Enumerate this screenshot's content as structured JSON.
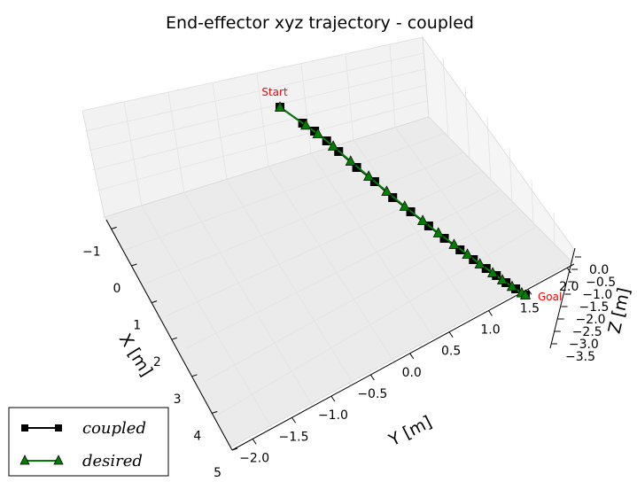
{
  "chart_data": {
    "type": "line3d",
    "title": "End-effector xyz trajectory - coupled",
    "xlabel": "X [m]",
    "ylabel": "Y [m]",
    "zlabel": "Z [m]",
    "x_ticks": [
      "−1",
      "0",
      "1",
      "2",
      "3",
      "4",
      "5"
    ],
    "y_ticks": [
      "−2.0",
      "−1.5",
      "−1.0",
      "−0.5",
      "0.0",
      "0.5",
      "1.0",
      "1.5",
      "2.0"
    ],
    "z_ticks": [
      "0.0",
      "−0.5",
      "−1.0",
      "−1.5",
      "−2.0",
      "−2.5",
      "−3.0",
      "−3.5"
    ],
    "xlim": [
      -1,
      5
    ],
    "ylim": [
      -2.0,
      2.0
    ],
    "zlim": [
      -3.5,
      0.0
    ],
    "grid": true,
    "legend_position": "bottom-left",
    "annotations": {
      "start": "Start",
      "goal": "Goal"
    },
    "series": [
      {
        "name": "coupled",
        "color": "#000000",
        "marker": "square",
        "points": [
          {
            "x": -0.5,
            "y": -0.2,
            "z": 0.0
          },
          {
            "x": -0.1,
            "y": -0.05,
            "z": -0.1
          },
          {
            "x": 0.1,
            "y": 0.05,
            "z": -0.15
          },
          {
            "x": 0.3,
            "y": 0.15,
            "z": -0.3
          },
          {
            "x": 0.5,
            "y": 0.25,
            "z": -0.5
          },
          {
            "x": 0.8,
            "y": 0.4,
            "z": -0.8
          },
          {
            "x": 1.1,
            "y": 0.55,
            "z": -1.0
          },
          {
            "x": 1.4,
            "y": 0.7,
            "z": -1.3
          },
          {
            "x": 1.7,
            "y": 0.85,
            "z": -1.5
          },
          {
            "x": 2.0,
            "y": 1.0,
            "z": -1.7
          },
          {
            "x": 2.25,
            "y": 1.15,
            "z": -1.9
          },
          {
            "x": 2.5,
            "y": 1.3,
            "z": -2.05
          },
          {
            "x": 2.7,
            "y": 1.45,
            "z": -2.2
          },
          {
            "x": 2.9,
            "y": 1.58,
            "z": -2.3
          },
          {
            "x": 3.05,
            "y": 1.7,
            "z": -2.4
          },
          {
            "x": 3.2,
            "y": 1.8,
            "z": -2.5
          },
          {
            "x": 3.35,
            "y": 1.9,
            "z": -2.55
          },
          {
            "x": 3.5,
            "y": 2.0,
            "z": -2.6
          }
        ]
      },
      {
        "name": "desired",
        "color": "#007f00",
        "marker": "triangle",
        "points": [
          {
            "x": -0.5,
            "y": -0.2,
            "z": 0.0
          },
          {
            "x": -0.05,
            "y": -0.02,
            "z": -0.12
          },
          {
            "x": 0.15,
            "y": 0.08,
            "z": -0.2
          },
          {
            "x": 0.4,
            "y": 0.22,
            "z": -0.4
          },
          {
            "x": 0.7,
            "y": 0.35,
            "z": -0.65
          },
          {
            "x": 1.0,
            "y": 0.5,
            "z": -0.9
          },
          {
            "x": 1.3,
            "y": 0.65,
            "z": -1.15
          },
          {
            "x": 1.6,
            "y": 0.8,
            "z": -1.4
          },
          {
            "x": 1.9,
            "y": 0.95,
            "z": -1.6
          },
          {
            "x": 2.15,
            "y": 1.1,
            "z": -1.8
          },
          {
            "x": 2.4,
            "y": 1.25,
            "z": -1.95
          },
          {
            "x": 2.6,
            "y": 1.4,
            "z": -2.1
          },
          {
            "x": 2.8,
            "y": 1.52,
            "z": -2.25
          },
          {
            "x": 3.0,
            "y": 1.65,
            "z": -2.35
          },
          {
            "x": 3.15,
            "y": 1.75,
            "z": -2.45
          },
          {
            "x": 3.3,
            "y": 1.85,
            "z": -2.52
          },
          {
            "x": 3.45,
            "y": 1.95,
            "z": -2.58
          },
          {
            "x": 3.5,
            "y": 2.0,
            "z": -2.6
          }
        ]
      }
    ]
  }
}
